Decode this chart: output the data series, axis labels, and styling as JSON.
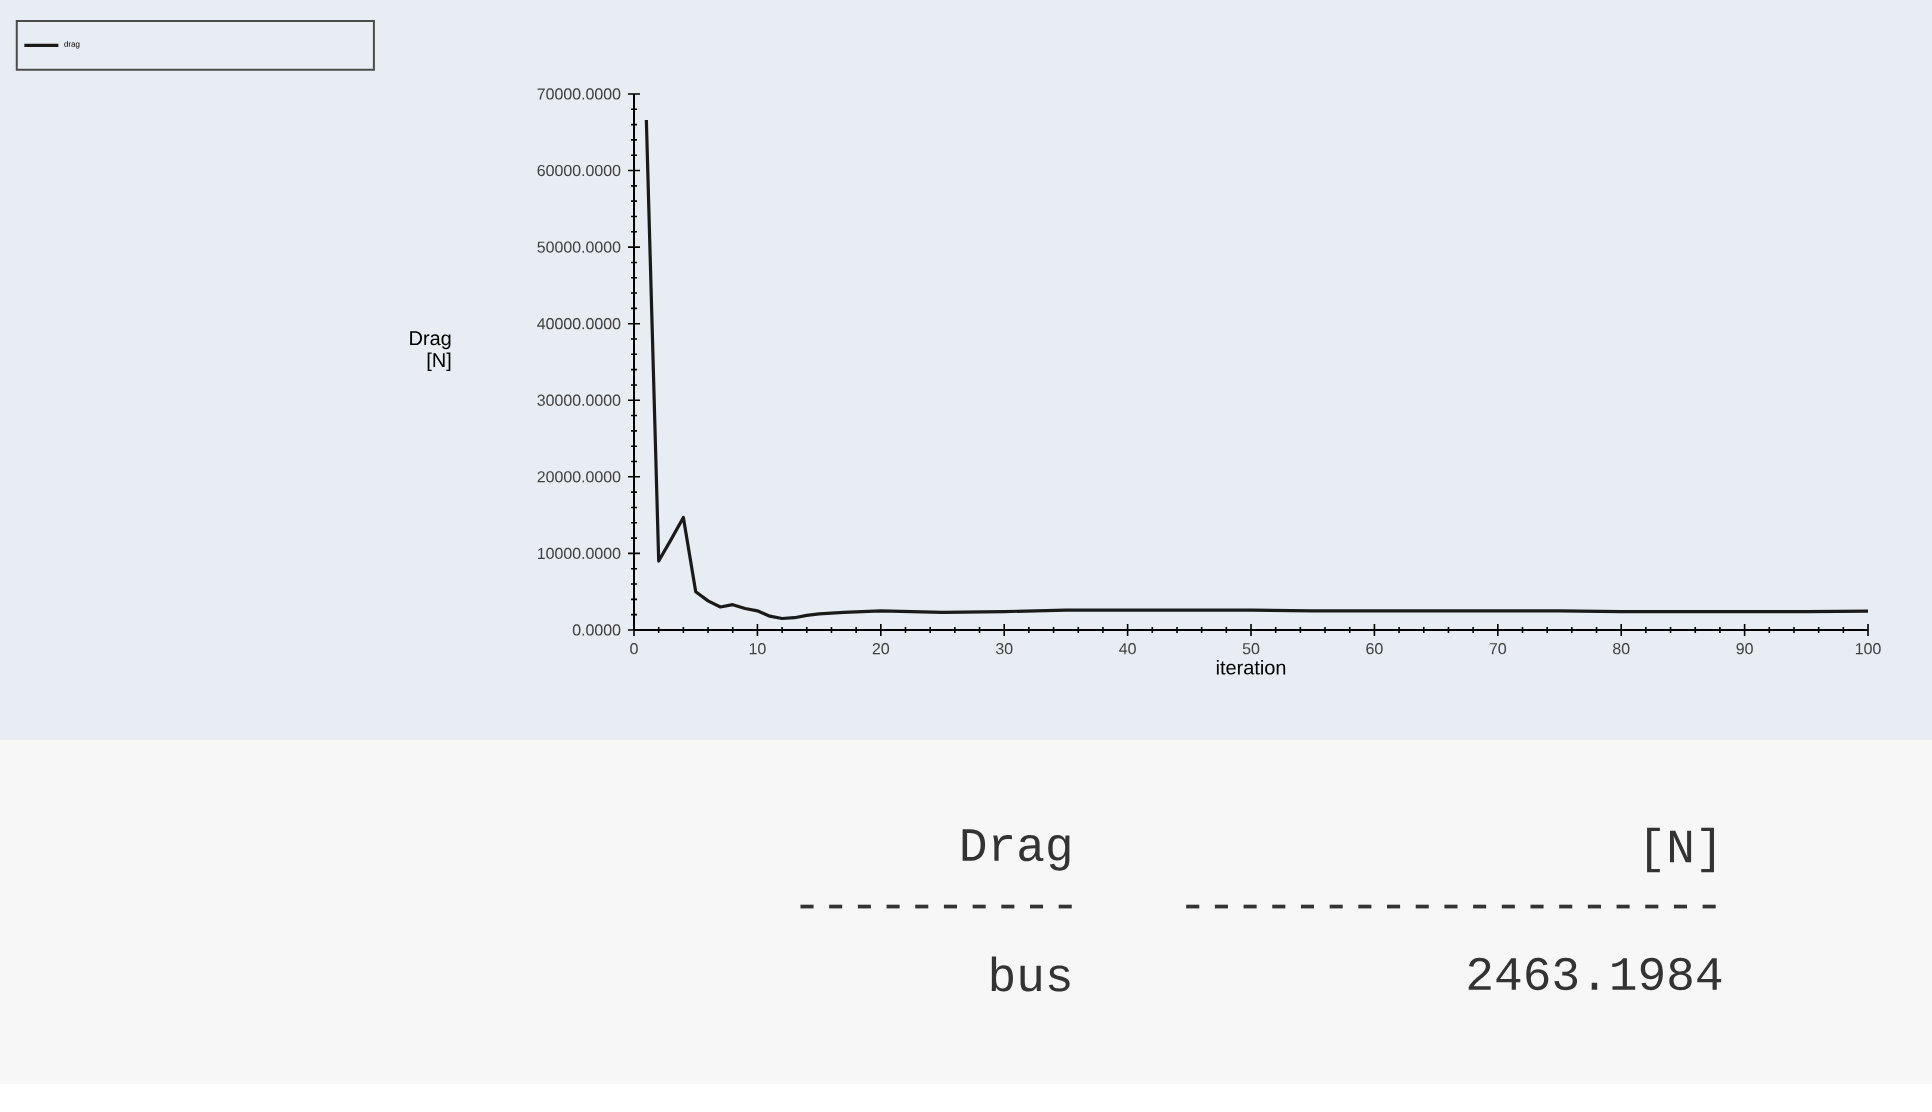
{
  "chart_data": {
    "type": "line",
    "x": [
      1,
      2,
      3,
      4,
      5,
      6,
      7,
      8,
      9,
      10,
      11,
      12,
      13,
      14,
      15,
      17,
      20,
      25,
      30,
      35,
      40,
      45,
      50,
      55,
      60,
      65,
      70,
      75,
      80,
      85,
      90,
      95,
      100
    ],
    "series": [
      {
        "name": "drag",
        "color": "#1a1a1a",
        "values": [
          66600,
          9000,
          11800,
          14700,
          5000,
          3800,
          3000,
          3300,
          2800,
          2500,
          1800,
          1500,
          1600,
          1900,
          2100,
          2300,
          2500,
          2300,
          2400,
          2600,
          2600,
          2600,
          2600,
          2500,
          2500,
          2500,
          2500,
          2500,
          2400,
          2400,
          2400,
          2400,
          2460
        ]
      }
    ],
    "xlabel": "iteration",
    "ylabel": "Drag [N]",
    "xlim": [
      0,
      100
    ],
    "ylim": [
      0,
      70000
    ],
    "xticks": [
      0,
      10,
      20,
      30,
      40,
      50,
      60,
      70,
      80,
      90,
      100
    ],
    "yticks": [
      {
        "value": 0,
        "label": "0.0000"
      },
      {
        "value": 10000,
        "label": "10000.0000"
      },
      {
        "value": 20000,
        "label": "20000.0000"
      },
      {
        "value": 30000,
        "label": "30000.0000"
      },
      {
        "value": 40000,
        "label": "40000.0000"
      },
      {
        "value": 50000,
        "label": "50000.0000"
      },
      {
        "value": 60000,
        "label": "60000.0000"
      },
      {
        "value": 70000,
        "label": "70000.0000"
      }
    ],
    "legend": "top left",
    "grid": false,
    "marker": "none",
    "line_style": "solid",
    "annotations": [
      "Drag",
      "[N]",
      "----------",
      "-------------------",
      "bus",
      "2463.1984"
    ]
  }
}
